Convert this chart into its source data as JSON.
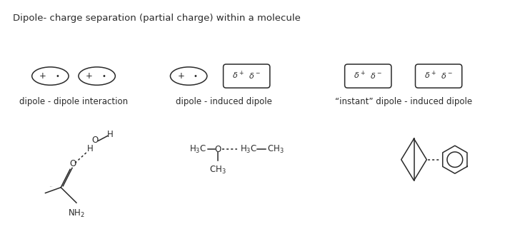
{
  "title": "Dipole- charge separation (partial charge) within a molecule",
  "title_fontsize": 9.5,
  "bg_color": "#ffffff",
  "text_color": "#2a2a2a",
  "label1": "dipole - dipole interaction",
  "label2": "dipole - induced dipole",
  "label3": "“instant” dipole - induced dipole",
  "figsize": [
    7.28,
    3.42
  ],
  "dpi": 100
}
